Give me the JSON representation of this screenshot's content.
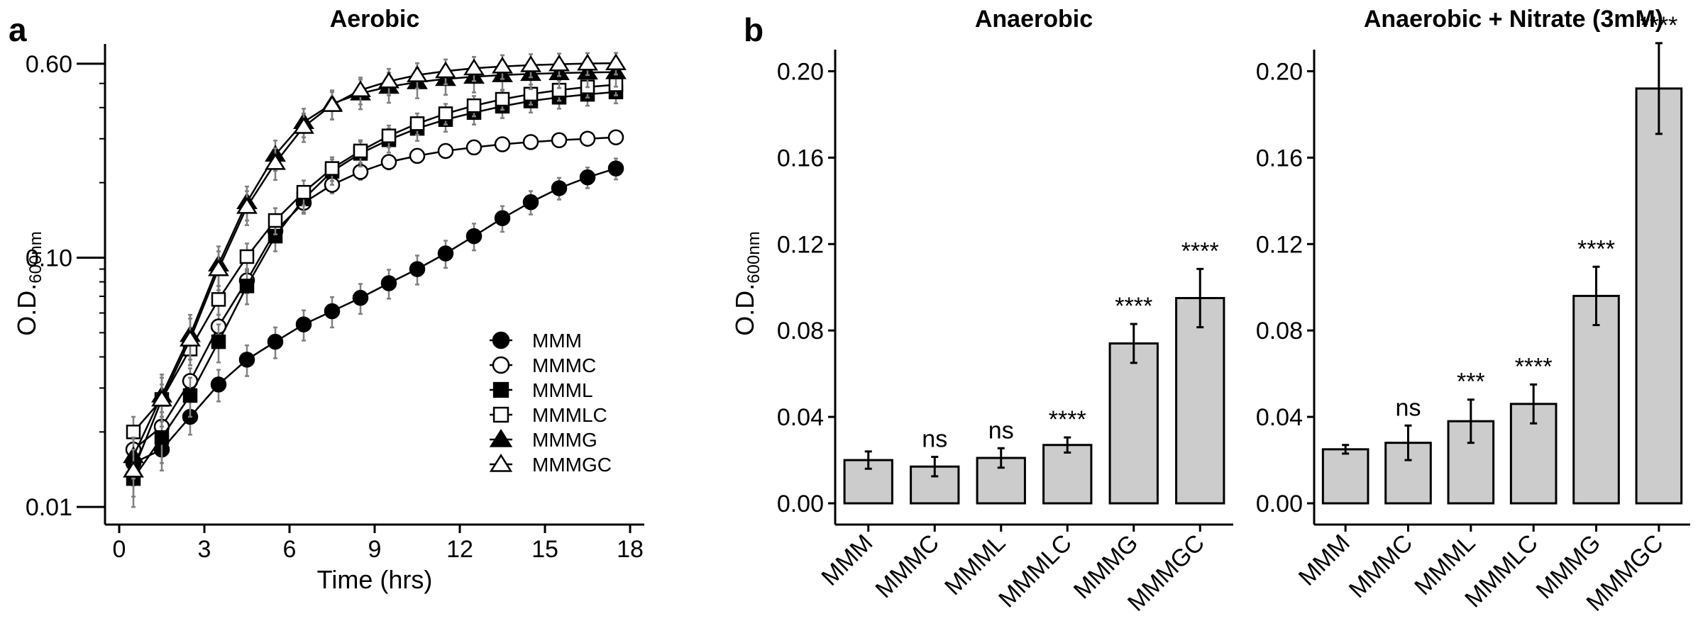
{
  "panel_labels": {
    "a": "a",
    "b": "b"
  },
  "chart_data": [
    {
      "type": "line",
      "title": "Aerobic",
      "xlabel": "Time (hrs)",
      "ylabel": {
        "main": "O.D.",
        "subscript": "600nm"
      },
      "yscale": "log",
      "xlim": [
        -0.5,
        18.5
      ],
      "ylim": [
        0.0085,
        0.72
      ],
      "xticks": [
        0,
        3,
        6,
        9,
        12,
        15,
        18
      ],
      "yticks": [
        {
          "value": 0.01,
          "label": "0.01"
        },
        {
          "value": 0.1,
          "label": "0.10"
        },
        {
          "value": 0.6,
          "label": "0.60"
        }
      ],
      "grid": false,
      "legend_position": "bottom-right",
      "x": [
        0.5,
        1.5,
        2.5,
        3.5,
        4.5,
        5.5,
        6.5,
        7.5,
        8.5,
        9.5,
        10.5,
        11.5,
        12.5,
        13.5,
        14.5,
        15.5,
        16.5,
        17.5
      ],
      "series": [
        {
          "name": "MMM",
          "marker": "filled-circle",
          "values": [
            0.015,
            0.017,
            0.023,
            0.031,
            0.039,
            0.046,
            0.054,
            0.061,
            0.069,
            0.079,
            0.09,
            0.104,
            0.122,
            0.144,
            0.167,
            0.19,
            0.21,
            0.228
          ],
          "errors": [
            0.0028,
            0.003,
            0.0035,
            0.0045,
            0.0055,
            0.0065,
            0.0075,
            0.0085,
            0.0095,
            0.0105,
            0.012,
            0.013,
            0.015,
            0.017,
            0.018,
            0.019,
            0.02,
            0.022
          ]
        },
        {
          "name": "MMMC",
          "marker": "open-circle",
          "values": [
            0.017,
            0.021,
            0.032,
            0.053,
            0.081,
            0.128,
            0.166,
            0.196,
            0.221,
            0.242,
            0.256,
            0.268,
            0.277,
            0.285,
            0.291,
            0.296,
            0.3,
            0.304
          ],
          "errors": [
            0.002,
            0.003,
            0.004,
            0.006,
            0.009,
            0.012,
            0.014,
            0.015,
            0.016,
            0.016,
            0.015,
            0.015,
            0.014,
            0.014,
            0.013,
            0.013,
            0.012,
            0.012
          ]
        },
        {
          "name": "MMML",
          "marker": "filled-square",
          "values": [
            0.013,
            0.019,
            0.028,
            0.046,
            0.077,
            0.122,
            0.172,
            0.222,
            0.262,
            0.297,
            0.33,
            0.358,
            0.382,
            0.405,
            0.425,
            0.44,
            0.452,
            0.462
          ],
          "errors": [
            0.003,
            0.004,
            0.005,
            0.008,
            0.012,
            0.016,
            0.022,
            0.026,
            0.03,
            0.033,
            0.036,
            0.038,
            0.04,
            0.042,
            0.043,
            0.044,
            0.045,
            0.046
          ]
        },
        {
          "name": "MMMLC",
          "marker": "open-square",
          "values": [
            0.02,
            0.027,
            0.043,
            0.068,
            0.101,
            0.141,
            0.183,
            0.228,
            0.268,
            0.308,
            0.345,
            0.378,
            0.407,
            0.432,
            0.453,
            0.47,
            0.484,
            0.494
          ],
          "errors": [
            0.003,
            0.004,
            0.006,
            0.009,
            0.013,
            0.017,
            0.021,
            0.025,
            0.028,
            0.031,
            0.034,
            0.036,
            0.038,
            0.04,
            0.042,
            0.044,
            0.045,
            0.046
          ]
        },
        {
          "name": "MMMG",
          "marker": "filled-triangle",
          "values": [
            0.016,
            0.028,
            0.049,
            0.094,
            0.167,
            0.259,
            0.35,
            0.414,
            0.456,
            0.485,
            0.506,
            0.521,
            0.532,
            0.54,
            0.546,
            0.55,
            0.553,
            0.555
          ],
          "errors": [
            0.003,
            0.006,
            0.01,
            0.017,
            0.026,
            0.036,
            0.046,
            0.055,
            0.062,
            0.067,
            0.07,
            0.071,
            0.072,
            0.072,
            0.072,
            0.071,
            0.07,
            0.07
          ]
        },
        {
          "name": "MMMGC",
          "marker": "open-triangle",
          "values": [
            0.014,
            0.027,
            0.047,
            0.09,
            0.16,
            0.24,
            0.335,
            0.41,
            0.47,
            0.51,
            0.54,
            0.56,
            0.575,
            0.585,
            0.592,
            0.597,
            0.601,
            0.603
          ],
          "errors": [
            0.003,
            0.006,
            0.01,
            0.016,
            0.025,
            0.035,
            0.044,
            0.052,
            0.058,
            0.062,
            0.063,
            0.064,
            0.064,
            0.064,
            0.063,
            0.062,
            0.061,
            0.06
          ]
        }
      ]
    },
    {
      "type": "bar",
      "title": "Anaerobic",
      "ylabel": {
        "main": "O.D.",
        "subscript": "600nm"
      },
      "ylim": [
        0,
        0.21
      ],
      "yticks": [
        "0.00",
        "0.04",
        "0.08",
        "0.12",
        "0.16",
        "0.20"
      ],
      "ytick_values": [
        0,
        0.04,
        0.08,
        0.12,
        0.16,
        0.2
      ],
      "grid": false,
      "bar_color": "#cccccc",
      "categories": [
        "MMM",
        "MMMC",
        "MMML",
        "MMMLC",
        "MMMG",
        "MMMGC"
      ],
      "values": [
        0.02,
        0.017,
        0.021,
        0.027,
        0.074,
        0.095
      ],
      "errors": [
        0.004,
        0.0045,
        0.0045,
        0.0035,
        0.009,
        0.0135
      ],
      "significance": [
        "",
        "ns",
        "ns",
        "****",
        "****",
        "****"
      ]
    },
    {
      "type": "bar",
      "title": "Anaerobic + Nitrate (3mM)",
      "ylim": [
        0,
        0.21
      ],
      "yticks": [
        "0.00",
        "0.04",
        "0.08",
        "0.12",
        "0.16",
        "0.20"
      ],
      "ytick_values": [
        0,
        0.04,
        0.08,
        0.12,
        0.16,
        0.2
      ],
      "grid": false,
      "bar_color": "#cccccc",
      "categories": [
        "MMM",
        "MMMC",
        "MMML",
        "MMMLC",
        "MMMG",
        "MMMGC"
      ],
      "values": [
        0.025,
        0.028,
        0.038,
        0.046,
        0.096,
        0.192
      ],
      "errors": [
        0.002,
        0.008,
        0.01,
        0.009,
        0.0135,
        0.021
      ],
      "significance": [
        "",
        "ns",
        "***",
        "****",
        "****",
        "****"
      ]
    }
  ]
}
